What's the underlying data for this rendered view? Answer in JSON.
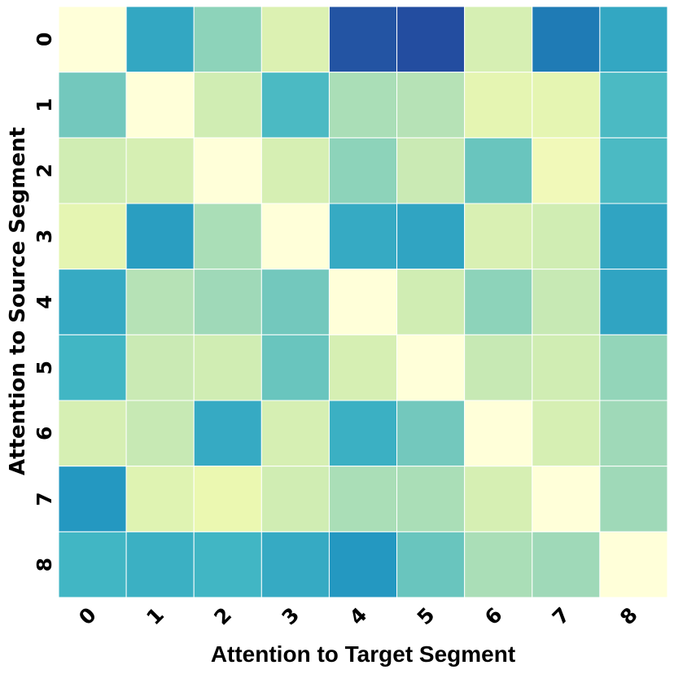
{
  "chart_data": {
    "type": "heatmap",
    "title": "",
    "xlabel": "Attention to Target Segment",
    "ylabel": "Attention to Source Segment",
    "x_categories": [
      "0",
      "1",
      "2",
      "3",
      "4",
      "5",
      "6",
      "7",
      "8"
    ],
    "y_categories": [
      "0",
      "1",
      "2",
      "3",
      "4",
      "5",
      "6",
      "7",
      "8"
    ],
    "colormap": "YlGnBu",
    "value_range": [
      0,
      1
    ],
    "colorbar": false,
    "grid_line_color": "#ffffff",
    "values": [
      [
        0.0,
        0.55,
        0.35,
        0.18,
        0.78,
        0.8,
        0.2,
        0.68,
        0.55
      ],
      [
        0.4,
        0.0,
        0.22,
        0.48,
        0.3,
        0.28,
        0.15,
        0.15,
        0.48
      ],
      [
        0.22,
        0.2,
        0.0,
        0.2,
        0.35,
        0.24,
        0.42,
        0.1,
        0.48
      ],
      [
        0.15,
        0.58,
        0.3,
        0.0,
        0.54,
        0.56,
        0.19,
        0.22,
        0.56
      ],
      [
        0.54,
        0.28,
        0.32,
        0.4,
        0.0,
        0.22,
        0.35,
        0.25,
        0.56
      ],
      [
        0.5,
        0.24,
        0.22,
        0.42,
        0.2,
        0.0,
        0.25,
        0.22,
        0.34
      ],
      [
        0.2,
        0.25,
        0.54,
        0.2,
        0.52,
        0.4,
        0.0,
        0.2,
        0.32
      ],
      [
        0.6,
        0.17,
        0.13,
        0.22,
        0.3,
        0.3,
        0.2,
        0.0,
        0.32
      ],
      [
        0.5,
        0.52,
        0.5,
        0.54,
        0.6,
        0.42,
        0.3,
        0.32,
        0.0
      ]
    ]
  }
}
